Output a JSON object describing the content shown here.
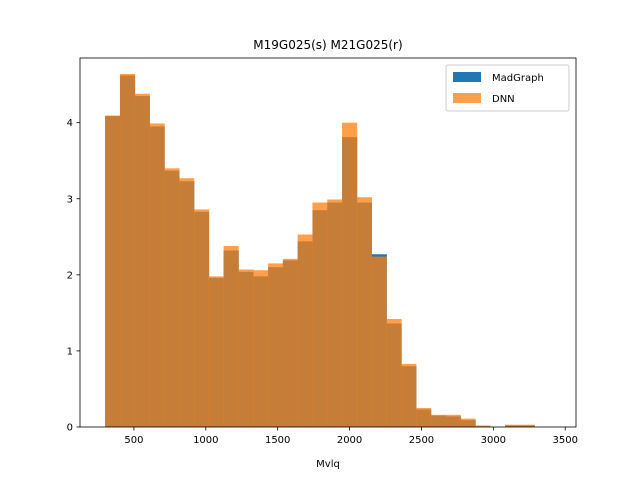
{
  "chart_data": {
    "type": "bar",
    "title": "M19G025(s) M21G025(r)",
    "xlabel": "Mvlq",
    "ylabel": "",
    "xlim": [
      125,
      3575
    ],
    "ylim": [
      0,
      4.85
    ],
    "xticks": [
      500,
      1000,
      1500,
      2000,
      2500,
      3000,
      3500
    ],
    "yticks": [
      0,
      1,
      2,
      3,
      4
    ],
    "grid": false,
    "legend_position": "top-right",
    "bin_edges": [
      300,
      403,
      506,
      609,
      712,
      815,
      918,
      1021,
      1124,
      1227,
      1330,
      1433,
      1536,
      1639,
      1742,
      1845,
      1948,
      2051,
      2154,
      2257,
      2360,
      2463,
      2566,
      2669,
      2772,
      2875,
      2978,
      3081,
      3184,
      3287,
      3390
    ],
    "series": [
      {
        "name": "MadGraph",
        "color": "#1f77b4",
        "values": [
          4.09,
          4.62,
          4.35,
          3.95,
          3.37,
          3.23,
          2.83,
          1.96,
          2.32,
          2.04,
          1.98,
          2.1,
          2.19,
          2.44,
          2.85,
          2.95,
          3.81,
          2.95,
          2.27,
          1.36,
          0.8,
          0.23,
          0.15,
          0.14,
          0.09,
          0.01,
          0,
          0.02,
          0.02,
          0
        ]
      },
      {
        "name": "DNN",
        "color": "#ff7f0e",
        "values": [
          4.09,
          4.64,
          4.38,
          3.99,
          3.4,
          3.27,
          2.86,
          1.98,
          2.38,
          2.07,
          2.06,
          2.15,
          2.21,
          2.53,
          2.95,
          2.99,
          4.0,
          3.02,
          2.24,
          1.42,
          0.83,
          0.25,
          0.16,
          0.16,
          0.11,
          0.02,
          0,
          0.03,
          0.03,
          0
        ]
      }
    ]
  }
}
